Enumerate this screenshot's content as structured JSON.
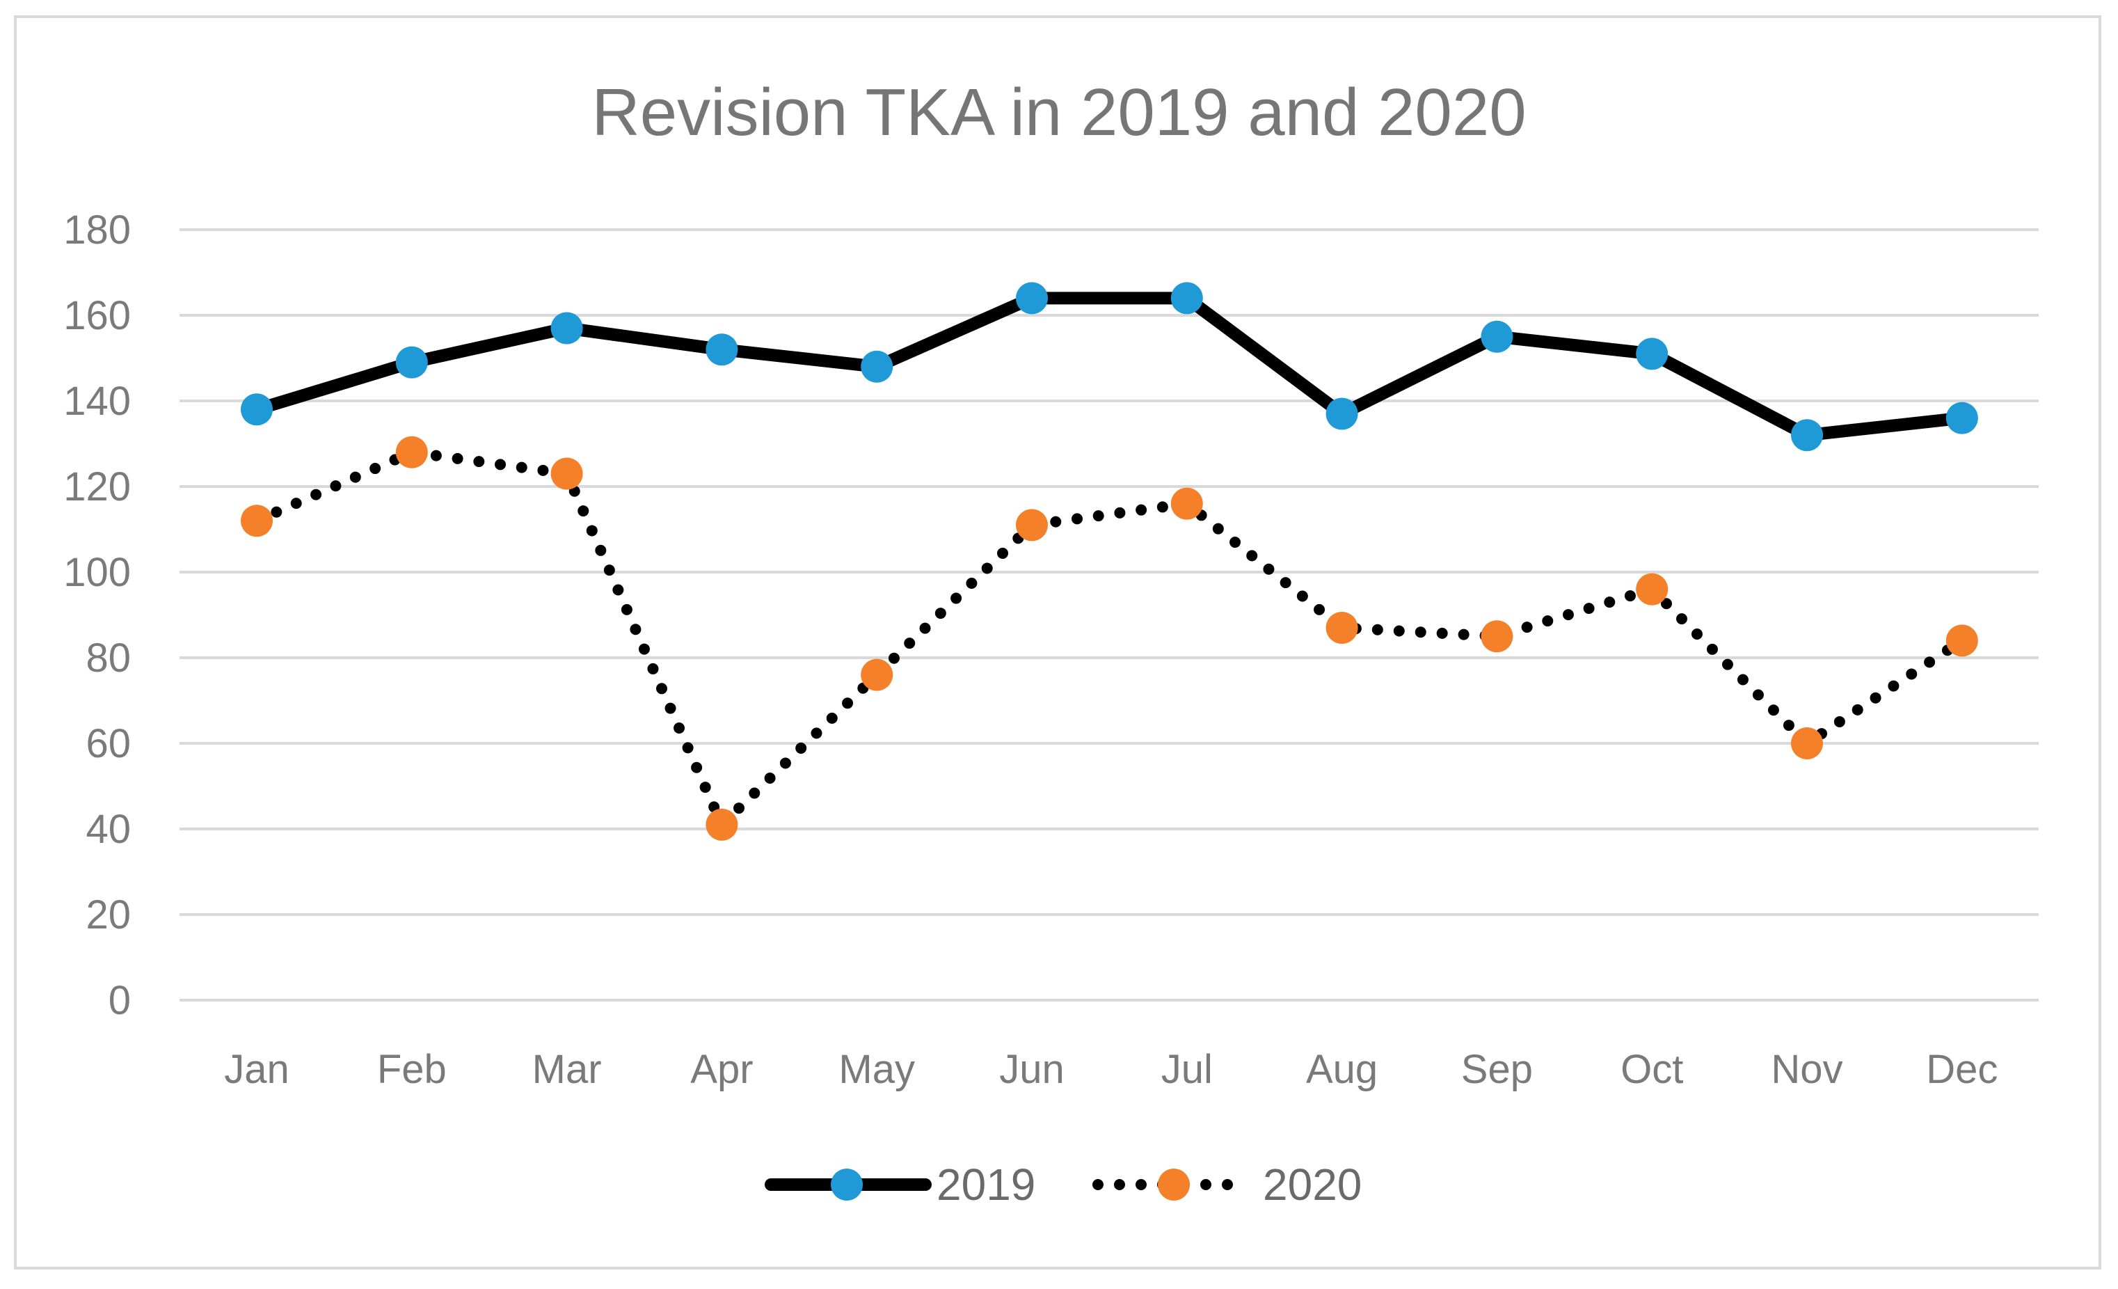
{
  "chart_data": {
    "type": "line",
    "title": "Revision TKA in 2019 and 2020",
    "xlabel": "",
    "ylabel": "",
    "categories": [
      "Jan",
      "Feb",
      "Mar",
      "Apr",
      "May",
      "Jun",
      "Jul",
      "Aug",
      "Sep",
      "Oct",
      "Nov",
      "Dec"
    ],
    "ylim": [
      0,
      180
    ],
    "yticks": [
      0,
      20,
      40,
      60,
      80,
      100,
      120,
      140,
      160,
      180
    ],
    "ytick_labels": [
      "0",
      "20",
      "40",
      "60",
      "80",
      "100",
      "120",
      "140",
      "160",
      "180"
    ],
    "grid": "horizontal",
    "legend_position": "bottom-center",
    "series": [
      {
        "name": "2019",
        "values": [
          138,
          149,
          157,
          152,
          148,
          164,
          164,
          137,
          155,
          151,
          132,
          136
        ],
        "line_color": "#000000",
        "line_style": "solid",
        "marker_color": "#1f9ad6"
      },
      {
        "name": "2020",
        "values": [
          112,
          128,
          123,
          41,
          76,
          111,
          116,
          87,
          85,
          96,
          60,
          84
        ],
        "line_color": "#000000",
        "line_style": "dotted",
        "marker_color": "#f5802a"
      }
    ]
  }
}
